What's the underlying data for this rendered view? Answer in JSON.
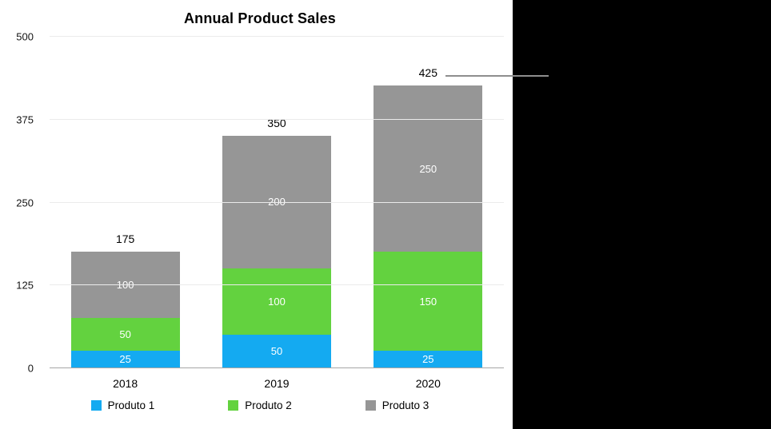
{
  "chart_data": {
    "type": "bar",
    "stacked": true,
    "title": "Annual Product Sales",
    "categories": [
      "2018",
      "2019",
      "2020"
    ],
    "series": [
      {
        "name": "Produto 1",
        "color": "#14aaf1",
        "values": [
          25,
          50,
          25
        ]
      },
      {
        "name": "Produto 2",
        "color": "#63d23f",
        "values": [
          50,
          100,
          150
        ]
      },
      {
        "name": "Produto 3",
        "color": "#969696",
        "values": [
          100,
          200,
          250
        ]
      }
    ],
    "totals": [
      175,
      350,
      425
    ],
    "y_ticks": [
      0,
      125,
      250,
      375,
      500
    ],
    "ylim": [
      0,
      500
    ],
    "grid": true,
    "legend_position": "bottom"
  },
  "annotation": {
    "callout_points_to": "425",
    "callout_color": "#8e8e8e"
  }
}
